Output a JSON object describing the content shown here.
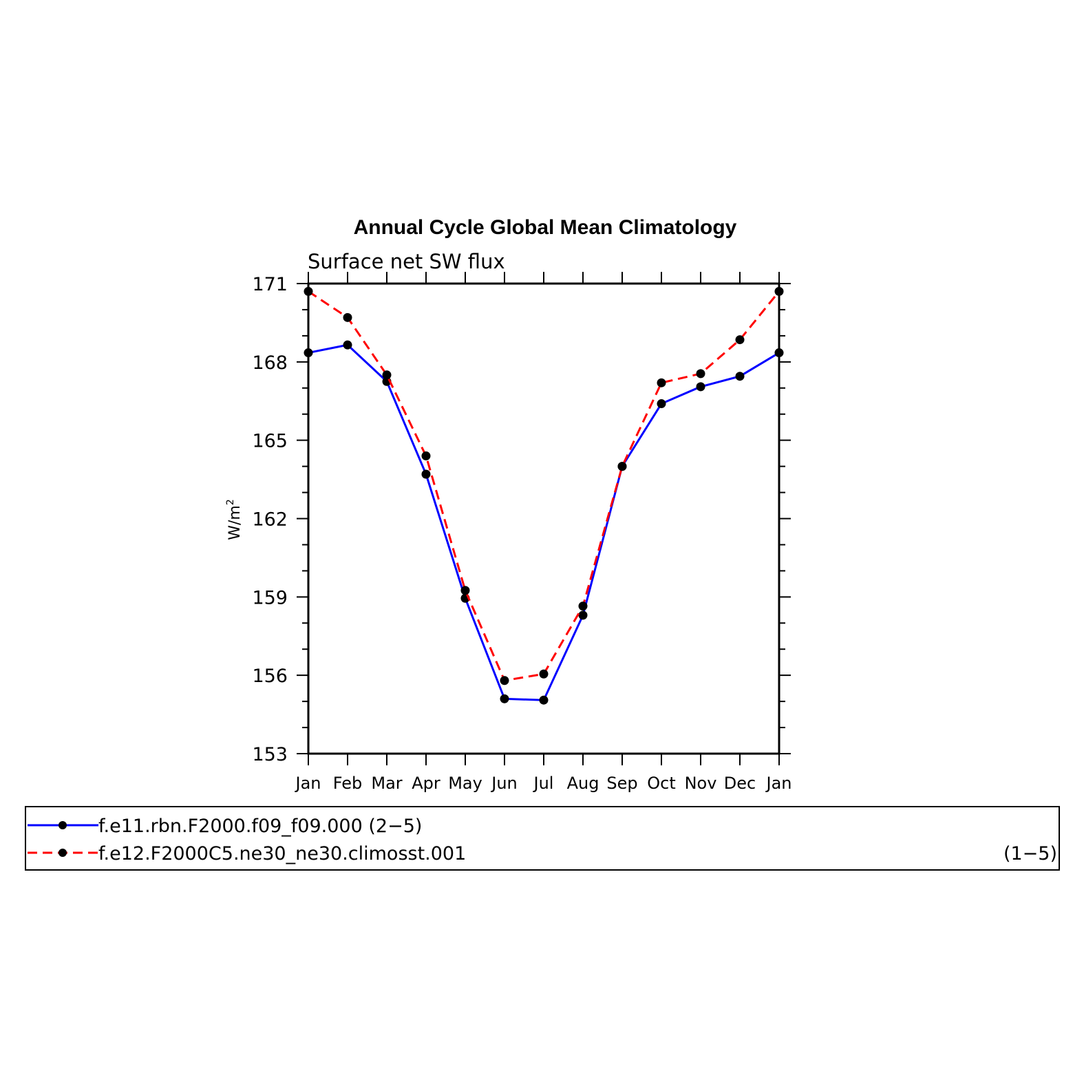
{
  "chart_data": {
    "type": "line",
    "title": "Annual Cycle Global Mean Climatology",
    "subtitle": "Surface net SW flux",
    "ylabel": "W/m",
    "ylabel_superscript": "2",
    "xlabel": "",
    "categories": [
      "Jan",
      "Feb",
      "Mar",
      "Apr",
      "May",
      "Jun",
      "Jul",
      "Aug",
      "Sep",
      "Oct",
      "Nov",
      "Dec",
      "Jan"
    ],
    "ylim": [
      153,
      171
    ],
    "yticks": [
      153,
      156,
      159,
      162,
      165,
      168,
      171
    ],
    "ytick_labels": [
      "153",
      "156",
      "159",
      "162",
      "165",
      "168",
      "171"
    ],
    "grid": false,
    "series": [
      {
        "name": "f.e11.rbn.F2000.f09_f09.000 (2−5)",
        "color": "#0000ff",
        "dash": "solid",
        "values": [
          168.35,
          168.65,
          167.25,
          163.7,
          158.95,
          155.1,
          155.05,
          158.3,
          164.0,
          166.4,
          167.05,
          167.45,
          168.35
        ]
      },
      {
        "name": "f.e12.F2000C5.ne30_ne30.climosst.001",
        "suffix": "(1−5)",
        "color": "#ff0000",
        "dash": "dashed",
        "values": [
          170.7,
          169.7,
          167.5,
          164.4,
          159.25,
          155.8,
          156.05,
          158.65,
          164.0,
          167.2,
          167.55,
          168.85,
          170.7
        ]
      }
    ],
    "legend_position": "bottom"
  }
}
